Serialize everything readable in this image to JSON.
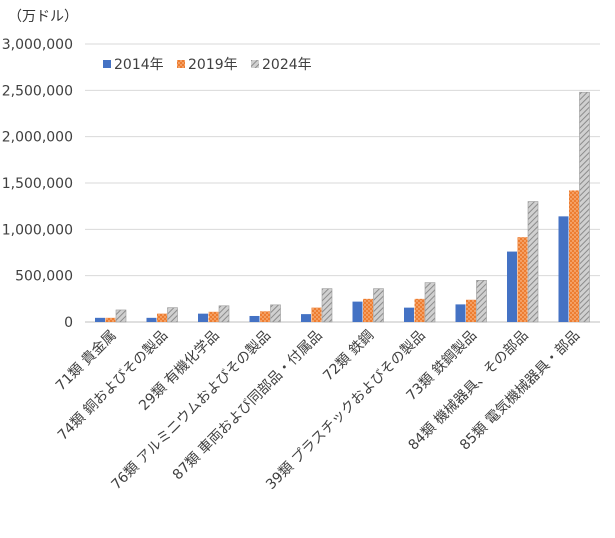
{
  "chart_data": {
    "type": "bar",
    "unit_label": "（万ドル）",
    "ylim": [
      0,
      3000000
    ],
    "y_ticks": [
      "0",
      "500,000",
      "1,000,000",
      "1,500,000",
      "2,000,000",
      "2,500,000",
      "3,000,000"
    ],
    "y_tick_values": [
      0,
      500000,
      1000000,
      1500000,
      2000000,
      2500000,
      3000000
    ],
    "grid": true,
    "legend_position": "top-center",
    "categories": [
      "71類 貴金属",
      "74類 銅およびその製品",
      "29類 有機化学品",
      "76類 アルミニウムおよびその製品",
      "87類 車両および同部品・付属品",
      "72類 鉄鋼",
      "39類 プラスチックおよびその製品",
      "73類 鉄鋼製品",
      "84類 機械器具、その部品",
      "85類 電気機械器具・部品"
    ],
    "series": [
      {
        "name": "2014年",
        "color": "#4472C4",
        "pattern": "solid",
        "values": [
          45000,
          45000,
          90000,
          65000,
          85000,
          220000,
          155000,
          190000,
          760000,
          1140000
        ]
      },
      {
        "name": "2019年",
        "color": "#ED7D31",
        "pattern": "dots",
        "values": [
          45000,
          90000,
          110000,
          115000,
          155000,
          250000,
          250000,
          240000,
          915000,
          1420000
        ]
      },
      {
        "name": "2024年",
        "color": "#A5A5A5",
        "pattern": "hatch",
        "values": [
          130000,
          155000,
          175000,
          185000,
          360000,
          360000,
          425000,
          450000,
          1300000,
          2480000
        ]
      }
    ]
  }
}
